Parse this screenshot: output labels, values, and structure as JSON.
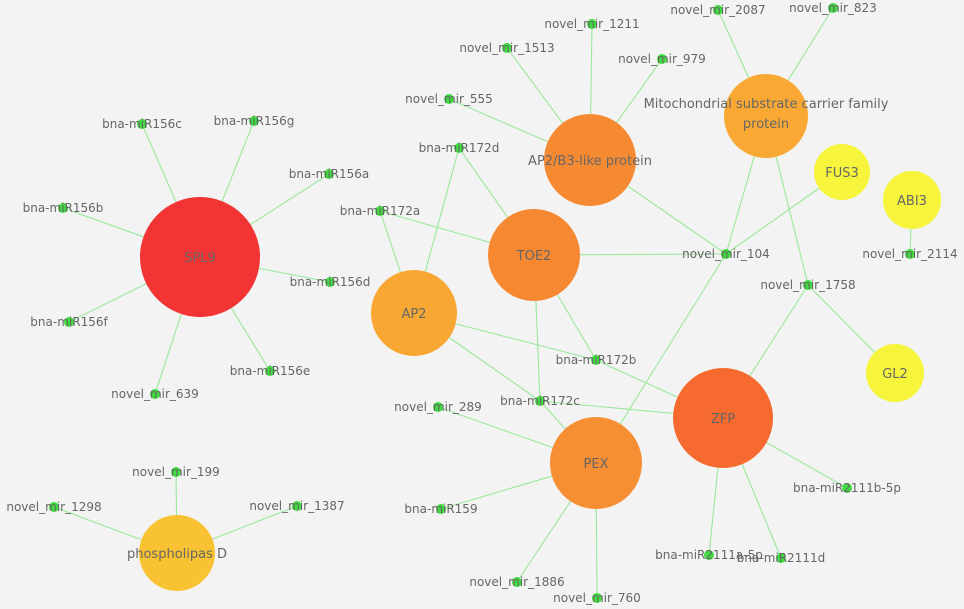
{
  "colors": {
    "background": "#f3f3f3",
    "edge": "#9be89b",
    "mirna": "#3fdc3f",
    "label": "#666666"
  },
  "nodes": [
    {
      "id": "spl9",
      "label": "SPL9",
      "kind": "hub",
      "color": "#f23434"
    },
    {
      "id": "ap2",
      "label": "AP2",
      "kind": "hub",
      "color": "#f8a832"
    },
    {
      "id": "toe2",
      "label": "TOE2",
      "kind": "hub",
      "color": "#f68832"
    },
    {
      "id": "ap2b3",
      "label": "AP2/B3-like protein",
      "kind": "hub",
      "color": "#f68a33"
    },
    {
      "id": "mito",
      "label": "Mitochondrial substrate carrier family protein",
      "kind": "hub",
      "color": "#f9a833"
    },
    {
      "id": "fus3",
      "label": "FUS3",
      "kind": "hub",
      "color": "#f6f53c"
    },
    {
      "id": "abi3",
      "label": "ABI3",
      "kind": "hub",
      "color": "#f6f53c"
    },
    {
      "id": "gl2",
      "label": "GL2",
      "kind": "hub",
      "color": "#f6f53c"
    },
    {
      "id": "zfp",
      "label": "ZFP",
      "kind": "hub",
      "color": "#f66a30"
    },
    {
      "id": "pex",
      "label": "PEX",
      "kind": "hub",
      "color": "#f68f34"
    },
    {
      "id": "phos",
      "label": "phospholipas D",
      "kind": "hub",
      "color": "#f8c232"
    },
    {
      "id": "m156c",
      "label": "bna-miR156c",
      "kind": "mirna"
    },
    {
      "id": "m156g",
      "label": "bna-miR156g",
      "kind": "mirna"
    },
    {
      "id": "m156a",
      "label": "bna-miR156a",
      "kind": "mirna"
    },
    {
      "id": "m156b",
      "label": "bna-miR156b",
      "kind": "mirna"
    },
    {
      "id": "m156d",
      "label": "bna-miR156d",
      "kind": "mirna"
    },
    {
      "id": "m156f",
      "label": "bna-miR156f",
      "kind": "mirna"
    },
    {
      "id": "m156e",
      "label": "bna-miR156e",
      "kind": "mirna"
    },
    {
      "id": "n639",
      "label": "novel_mir_639",
      "kind": "mirna"
    },
    {
      "id": "n1211",
      "label": "novel_mir_1211",
      "kind": "mirna"
    },
    {
      "id": "n1513",
      "label": "novel_mir_1513",
      "kind": "mirna"
    },
    {
      "id": "n979",
      "label": "novel_mir_979",
      "kind": "mirna"
    },
    {
      "id": "n555",
      "label": "novel_mir_555",
      "kind": "mirna"
    },
    {
      "id": "n2087",
      "label": "novel_mir_2087",
      "kind": "mirna"
    },
    {
      "id": "n823",
      "label": "novel_mir_823",
      "kind": "mirna"
    },
    {
      "id": "m172d",
      "label": "bna-miR172d",
      "kind": "mirna"
    },
    {
      "id": "m172a",
      "label": "bna-miR172a",
      "kind": "mirna"
    },
    {
      "id": "n104",
      "label": "novel_mir_104",
      "kind": "mirna"
    },
    {
      "id": "n2114",
      "label": "novel_mir_2114",
      "kind": "mirna"
    },
    {
      "id": "n1758",
      "label": "novel_mir_1758",
      "kind": "mirna"
    },
    {
      "id": "m172b",
      "label": "bna-miR172b",
      "kind": "mirna"
    },
    {
      "id": "m172c",
      "label": "bna-miR172c",
      "kind": "mirna"
    },
    {
      "id": "n289",
      "label": "novel_mir_289",
      "kind": "mirna"
    },
    {
      "id": "m159",
      "label": "bna-miR159",
      "kind": "mirna"
    },
    {
      "id": "n1886",
      "label": "novel_mir_1886",
      "kind": "mirna"
    },
    {
      "id": "n760",
      "label": "novel_mir_760",
      "kind": "mirna"
    },
    {
      "id": "m2111b",
      "label": "bna-miR2111b-5p",
      "kind": "mirna"
    },
    {
      "id": "m2111a",
      "label": "bna-miR2111a-5p",
      "kind": "mirna"
    },
    {
      "id": "m2111d",
      "label": "bna-miR2111d",
      "kind": "mirna"
    },
    {
      "id": "n199",
      "label": "novel_mir_199",
      "kind": "mirna"
    },
    {
      "id": "n1298",
      "label": "novel_mir_1298",
      "kind": "mirna"
    },
    {
      "id": "n1387",
      "label": "novel_mir_1387",
      "kind": "mirna"
    }
  ],
  "edges": [
    [
      "spl9",
      "m156c"
    ],
    [
      "spl9",
      "m156g"
    ],
    [
      "spl9",
      "m156a"
    ],
    [
      "spl9",
      "m156b"
    ],
    [
      "spl9",
      "m156d"
    ],
    [
      "spl9",
      "m156f"
    ],
    [
      "spl9",
      "m156e"
    ],
    [
      "spl9",
      "n639"
    ],
    [
      "ap2b3",
      "n1211"
    ],
    [
      "ap2b3",
      "n1513"
    ],
    [
      "ap2b3",
      "n979"
    ],
    [
      "ap2b3",
      "n555"
    ],
    [
      "ap2b3",
      "n104"
    ],
    [
      "mito",
      "n2087"
    ],
    [
      "mito",
      "n823"
    ],
    [
      "mito",
      "n104"
    ],
    [
      "mito",
      "n1758"
    ],
    [
      "toe2",
      "m172d"
    ],
    [
      "toe2",
      "m172a"
    ],
    [
      "toe2",
      "n104"
    ],
    [
      "toe2",
      "m172b"
    ],
    [
      "toe2",
      "m172c"
    ],
    [
      "ap2",
      "m172d"
    ],
    [
      "ap2",
      "m172a"
    ],
    [
      "ap2",
      "m172c"
    ],
    [
      "ap2",
      "m172b"
    ],
    [
      "fus3",
      "n104"
    ],
    [
      "abi3",
      "n2114"
    ],
    [
      "gl2",
      "n1758"
    ],
    [
      "zfp",
      "n1758"
    ],
    [
      "zfp",
      "m172b"
    ],
    [
      "zfp",
      "m172c"
    ],
    [
      "zfp",
      "m2111b"
    ],
    [
      "zfp",
      "m2111a"
    ],
    [
      "zfp",
      "m2111d"
    ],
    [
      "pex",
      "n104"
    ],
    [
      "pex",
      "n289"
    ],
    [
      "pex",
      "m159"
    ],
    [
      "pex",
      "n1886"
    ],
    [
      "pex",
      "n760"
    ],
    [
      "pex",
      "m172c"
    ],
    [
      "phos",
      "n199"
    ],
    [
      "phos",
      "n1298"
    ],
    [
      "phos",
      "n1387"
    ]
  ]
}
